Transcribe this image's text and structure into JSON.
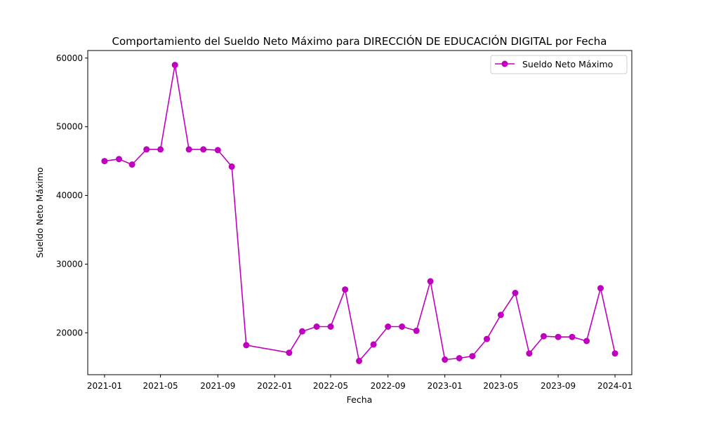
{
  "chart_data": {
    "type": "line",
    "title": "Comportamiento del Sueldo Neto Máximo para DIRECCIÓN DE EDUCACIÓN DIGITAL por Fecha",
    "xlabel": "Fecha",
    "ylabel": "Sueldo Neto Máximo",
    "x_ticks": [
      "2021-01",
      "2021-05",
      "2021-09",
      "2022-01",
      "2022-05",
      "2022-09",
      "2023-01",
      "2023-05",
      "2023-09",
      "2024-01"
    ],
    "y_ticks": [
      20000,
      30000,
      40000,
      50000,
      60000
    ],
    "xlim": [
      "2020-11-26",
      "2024-02-06"
    ],
    "ylim": [
      13900,
      61100
    ],
    "grid": false,
    "legend_position": "upper right",
    "color": "#bf00bf",
    "series": [
      {
        "name": "Sueldo Neto Máximo",
        "x": [
          "2021-01-01",
          "2021-02-01",
          "2021-03-01",
          "2021-04-01",
          "2021-05-01",
          "2021-06-01",
          "2021-07-01",
          "2021-08-01",
          "2021-09-01",
          "2021-10-01",
          "2021-11-01",
          "2022-02-01",
          "2022-03-01",
          "2022-04-01",
          "2022-05-01",
          "2022-06-01",
          "2022-07-01",
          "2022-08-01",
          "2022-09-01",
          "2022-10-01",
          "2022-11-01",
          "2022-12-01",
          "2023-01-01",
          "2023-02-01",
          "2023-03-01",
          "2023-04-01",
          "2023-05-01",
          "2023-06-01",
          "2023-07-01",
          "2023-08-01",
          "2023-09-01",
          "2023-10-01",
          "2023-11-01",
          "2023-12-01",
          "2024-01-01"
        ],
        "values": [
          45000,
          45300,
          44500,
          46700,
          46700,
          59000,
          46700,
          46700,
          46600,
          44200,
          18200,
          17100,
          20200,
          20900,
          20900,
          26300,
          15900,
          18300,
          20900,
          20900,
          20300,
          27500,
          16100,
          16300,
          16600,
          19100,
          22600,
          25800,
          17000,
          19500,
          19400,
          19400,
          18800,
          26500,
          17000
        ]
      }
    ]
  }
}
